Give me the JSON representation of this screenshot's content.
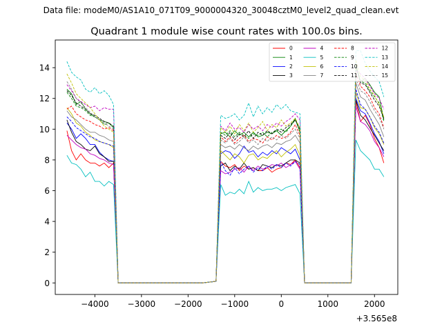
{
  "figure": {
    "filename_label": "Data file: modeM0/AS1A10_071T09_9000004320_30048cztM0_level2_quad_clean.evt"
  },
  "chart_data": {
    "type": "line",
    "title": "Quadrant 1 module wise count rates with 100.0s bins.",
    "xlabel": "",
    "ylabel": "",
    "x_offset_label": "+3.565e8",
    "xlim": [
      -4850,
      2500
    ],
    "ylim": [
      -0.75,
      15.8
    ],
    "xticks": [
      -4000,
      -3000,
      -2000,
      -1000,
      0,
      1000,
      2000
    ],
    "xtick_labels": [
      "−4000",
      "−3000",
      "−2000",
      "−1000",
      "0",
      "1000",
      "2000"
    ],
    "yticks": [
      0,
      2,
      4,
      6,
      8,
      10,
      12,
      14
    ],
    "ytick_labels": [
      "0",
      "2",
      "4",
      "6",
      "8",
      "10",
      "12",
      "14"
    ],
    "grid": false,
    "legend_position": "top-right",
    "legend_columns": 4,
    "segments": [
      {
        "x0": -4600,
        "n": 11
      },
      {
        "x0": -3500,
        "n": 19
      },
      {
        "x0": -1400,
        "n": 1
      },
      {
        "x0": -1300,
        "n": 17
      },
      {
        "x0": 400,
        "n": 1
      },
      {
        "x0": 500,
        "n": 11
      },
      {
        "x0": 1500,
        "n": 1
      },
      {
        "x0": 1600,
        "n": 7
      }
    ],
    "series": [
      {
        "name": "0",
        "color": "#ff0000",
        "dash": false,
        "values": [
          9.9,
          8.6,
          8.0,
          8.4,
          8.0,
          7.8,
          7.8,
          7.6,
          7.8,
          7.5,
          7.8,
          0,
          0,
          0,
          0,
          0,
          0,
          0,
          0,
          0,
          0,
          0,
          0,
          0,
          0,
          0,
          0,
          0,
          0,
          0,
          0.1,
          7.9,
          7.6,
          7.5,
          7.7,
          7.3,
          7.6,
          7.4,
          7.5,
          7.3,
          7.3,
          7.5,
          7.2,
          7.4,
          7.5,
          7.8,
          7.7,
          8.0,
          7.5,
          0,
          0,
          0,
          0,
          0,
          0,
          0,
          0,
          0,
          0,
          0,
          0.1,
          11.8,
          10.5,
          10.9,
          10.3,
          9.4,
          8.8,
          7.8
        ]
      },
      {
        "name": "1",
        "color": "#008000",
        "dash": false,
        "values": [
          12.6,
          12.3,
          11.6,
          11.8,
          11.3,
          11.0,
          10.8,
          10.6,
          10.5,
          10.4,
          10.1,
          0,
          0,
          0,
          0,
          0,
          0,
          0,
          0,
          0,
          0,
          0,
          0,
          0,
          0,
          0,
          0,
          0,
          0,
          0,
          0.1,
          9.7,
          9.8,
          9.5,
          9.9,
          9.6,
          9.8,
          9.5,
          9.8,
          9.5,
          9.6,
          9.8,
          9.7,
          9.9,
          9.6,
          9.9,
          10.2,
          10.7,
          9.8,
          0,
          0,
          0,
          0,
          0,
          0,
          0,
          0,
          0,
          0,
          0,
          0.1,
          14.2,
          13.1,
          13.3,
          12.9,
          12.4,
          12.1,
          10.6
        ]
      },
      {
        "name": "2",
        "color": "#0000ff",
        "dash": false,
        "values": [
          10.4,
          10.0,
          9.4,
          9.7,
          9.4,
          9.0,
          9.0,
          8.5,
          8.2,
          8.0,
          7.9,
          0,
          0,
          0,
          0,
          0,
          0,
          0,
          0,
          0,
          0,
          0,
          0,
          0,
          0,
          0,
          0,
          0,
          0,
          0,
          0.1,
          8.4,
          8.6,
          8.5,
          8.1,
          8.4,
          8.9,
          8.5,
          8.6,
          8.2,
          8.5,
          8.3,
          8.6,
          8.4,
          8.8,
          8.6,
          8.4,
          8.7,
          8.0,
          0,
          0,
          0,
          0,
          0,
          0,
          0,
          0,
          0,
          0,
          0,
          0.1,
          12.0,
          11.2,
          11.0,
          10.4,
          9.7,
          9.2,
          8.4
        ]
      },
      {
        "name": "3",
        "color": "#000000",
        "dash": false,
        "values": [
          10.6,
          9.8,
          9.2,
          9.0,
          8.7,
          8.6,
          8.9,
          8.4,
          8.2,
          7.9,
          7.9,
          0,
          0,
          0,
          0,
          0,
          0,
          0,
          0,
          0,
          0,
          0,
          0,
          0,
          0,
          0,
          0,
          0,
          0,
          0,
          0.1,
          7.6,
          7.8,
          7.3,
          7.6,
          7.4,
          7.8,
          7.4,
          7.5,
          7.3,
          7.7,
          7.6,
          7.5,
          7.7,
          7.6,
          7.8,
          8.0,
          8.0,
          7.8,
          0,
          0,
          0,
          0,
          0,
          0,
          0,
          0,
          0,
          0,
          0,
          0.1,
          11.9,
          10.9,
          10.6,
          10.1,
          9.6,
          9.1,
          8.6
        ]
      },
      {
        "name": "4",
        "color": "#bf00bf",
        "dash": false,
        "values": [
          9.6,
          9.3,
          9.0,
          8.8,
          8.7,
          8.4,
          8.3,
          8.1,
          8.0,
          7.8,
          7.7,
          0,
          0,
          0,
          0,
          0,
          0,
          0,
          0,
          0,
          0,
          0,
          0,
          0,
          0,
          0,
          0,
          0,
          0,
          0,
          0.1,
          7.3,
          7.1,
          7.2,
          7.4,
          7.5,
          7.2,
          7.6,
          7.3,
          7.6,
          7.4,
          7.5,
          7.7,
          7.6,
          7.8,
          7.5,
          7.7,
          7.9,
          7.4,
          0,
          0,
          0,
          0,
          0,
          0,
          0,
          0,
          0,
          0,
          0,
          0.1,
          11.5,
          10.5,
          10.3,
          9.9,
          9.2,
          8.8,
          8.2
        ]
      },
      {
        "name": "5",
        "color": "#00bfbf",
        "dash": false,
        "values": [
          8.3,
          7.8,
          7.7,
          7.4,
          6.9,
          7.2,
          6.6,
          6.6,
          6.3,
          6.6,
          6.4,
          0,
          0,
          0,
          0,
          0,
          0,
          0,
          0,
          0,
          0,
          0,
          0,
          0,
          0,
          0,
          0,
          0,
          0,
          0,
          0.1,
          6.4,
          5.7,
          5.9,
          5.8,
          6.1,
          5.8,
          6.6,
          5.9,
          6.2,
          6.0,
          6.1,
          6.1,
          6.2,
          6.0,
          6.2,
          6.3,
          6.4,
          5.8,
          0,
          0,
          0,
          0,
          0,
          0,
          0,
          0,
          0,
          0,
          0,
          0.1,
          9.3,
          8.6,
          8.3,
          8.0,
          7.4,
          7.4,
          6.9
        ]
      },
      {
        "name": "6",
        "color": "#bfbf00",
        "dash": false,
        "values": [
          11.4,
          11.0,
          10.4,
          10.2,
          9.8,
          9.6,
          9.3,
          9.2,
          9.1,
          9.0,
          8.8,
          0,
          0,
          0,
          0,
          0,
          0,
          0,
          0,
          0,
          0,
          0,
          0,
          0,
          0,
          0,
          0,
          0,
          0,
          0,
          0.1,
          8.6,
          8.3,
          8.0,
          8.4,
          8.2,
          7.8,
          8.3,
          8.4,
          8.0,
          8.2,
          8.1,
          8.4,
          8.6,
          8.2,
          8.5,
          8.7,
          9.0,
          8.3,
          0,
          0,
          0,
          0,
          0,
          0,
          0,
          0,
          0,
          0,
          0,
          0.1,
          12.4,
          11.4,
          11.3,
          10.8,
          10.1,
          9.7,
          9.0
        ]
      },
      {
        "name": "7",
        "color": "#808080",
        "dash": false,
        "values": [
          11.2,
          10.8,
          10.6,
          10.3,
          10.0,
          9.8,
          9.8,
          9.6,
          9.5,
          9.3,
          9.2,
          0,
          0,
          0,
          0,
          0,
          0,
          0,
          0,
          0,
          0,
          0,
          0,
          0,
          0,
          0,
          0,
          0,
          0,
          0,
          0.1,
          9.0,
          8.8,
          8.9,
          8.7,
          9.0,
          8.8,
          8.6,
          8.9,
          8.7,
          8.9,
          9.0,
          8.8,
          9.1,
          9.0,
          9.2,
          9.3,
          9.6,
          9.1,
          0,
          0,
          0,
          0,
          0,
          0,
          0,
          0,
          0,
          0,
          0,
          0.1,
          13.0,
          12.1,
          11.9,
          11.3,
          10.8,
          10.3,
          9.5
        ]
      },
      {
        "name": "8",
        "color": "#ff0000",
        "dash": true,
        "values": [
          11.3,
          11.5,
          11.0,
          10.8,
          10.6,
          10.5,
          10.3,
          10.2,
          10.0,
          10.1,
          9.9,
          0,
          0,
          0,
          0,
          0,
          0,
          0,
          0,
          0,
          0,
          0,
          0,
          0,
          0,
          0,
          0,
          0,
          0,
          0,
          0.1,
          9.5,
          9.2,
          9.5,
          9.1,
          9.4,
          9.6,
          9.2,
          9.4,
          9.3,
          9.1,
          9.5,
          9.3,
          9.6,
          9.4,
          9.5,
          9.8,
          10.3,
          9.6,
          0,
          0,
          0,
          0,
          0,
          0,
          0,
          0,
          0,
          0,
          0,
          0.1,
          13.6,
          12.8,
          12.5,
          12.1,
          11.4,
          11.0,
          10.1
        ]
      },
      {
        "name": "9",
        "color": "#008000",
        "dash": true,
        "values": [
          12.4,
          12.0,
          11.5,
          11.4,
          11.2,
          10.9,
          10.8,
          10.6,
          10.3,
          10.4,
          10.1,
          0,
          0,
          0,
          0,
          0,
          0,
          0,
          0,
          0,
          0,
          0,
          0,
          0,
          0,
          0,
          0,
          0,
          0,
          0,
          0.1,
          9.8,
          9.6,
          9.9,
          9.5,
          9.8,
          9.6,
          9.4,
          9.7,
          9.6,
          9.8,
          9.5,
          9.8,
          9.9,
          10.0,
          9.8,
          10.2,
          10.6,
          9.9,
          0,
          0,
          0,
          0,
          0,
          0,
          0,
          0,
          0,
          0,
          0,
          0.1,
          14.0,
          13.1,
          13.0,
          12.5,
          12.1,
          11.7,
          10.5
        ]
      },
      {
        "name": "10",
        "color": "#0000ff",
        "dash": true,
        "values": [
          10.8,
          10.5,
          10.1,
          9.9,
          9.7,
          9.5,
          9.4,
          9.2,
          9.1,
          9.0,
          8.9,
          0,
          0,
          0,
          0,
          0,
          0,
          0,
          0,
          0,
          0,
          0,
          0,
          0,
          0,
          0,
          0,
          0,
          0,
          0,
          0.1,
          7.9,
          7.3,
          7.0,
          7.5,
          7.1,
          7.4,
          7.6,
          7.2,
          7.5,
          7.3,
          7.6,
          7.4,
          7.7,
          7.5,
          7.8,
          7.6,
          7.9,
          7.7,
          0,
          0,
          0,
          0,
          0,
          0,
          0,
          0,
          0,
          0,
          0,
          0.1,
          12.6,
          11.6,
          11.3,
          10.8,
          10.2,
          9.8,
          9.1
        ]
      },
      {
        "name": "11",
        "color": "#000000",
        "dash": true,
        "values": [
          12.5,
          12.2,
          11.7,
          11.5,
          11.3,
          11.0,
          10.9,
          10.7,
          10.5,
          10.4,
          10.2,
          0,
          0,
          0,
          0,
          0,
          0,
          0,
          0,
          0,
          0,
          0,
          0,
          0,
          0,
          0,
          0,
          0,
          0,
          0,
          0.1,
          9.6,
          9.4,
          9.8,
          9.3,
          9.7,
          9.5,
          9.9,
          9.4,
          9.8,
          9.6,
          9.9,
          9.7,
          10.0,
          9.8,
          10.1,
          10.3,
          10.6,
          10.0,
          0,
          0,
          0,
          0,
          0,
          0,
          0,
          0,
          0,
          0,
          0,
          0.1,
          14.1,
          13.0,
          12.9,
          12.4,
          11.9,
          11.5,
          10.7
        ]
      },
      {
        "name": "12",
        "color": "#bf00bf",
        "dash": true,
        "values": [
          12.9,
          12.5,
          12.0,
          11.8,
          11.6,
          11.4,
          11.5,
          11.2,
          11.4,
          11.3,
          11.3,
          0,
          0,
          0,
          0,
          0,
          0,
          0,
          0,
          0,
          0,
          0,
          0,
          0,
          0,
          0,
          0,
          0,
          0,
          0,
          0.1,
          10.2,
          9.9,
          10.4,
          10.0,
          10.1,
          9.8,
          10.3,
          10.0,
          10.2,
          9.9,
          10.3,
          10.1,
          10.4,
          10.2,
          10.5,
          10.7,
          11.0,
          10.6,
          0,
          0,
          0,
          0,
          0,
          0,
          0,
          0,
          0,
          0,
          0,
          0.1,
          13.8,
          13.6,
          13.3,
          12.8,
          12.3,
          12.0,
          11.3
        ]
      },
      {
        "name": "13",
        "color": "#00bfbf",
        "dash": true,
        "values": [
          14.4,
          13.7,
          13.4,
          13.2,
          12.6,
          12.4,
          12.7,
          12.3,
          12.5,
          12.2,
          11.6,
          0,
          0,
          0,
          0,
          0,
          0,
          0,
          0,
          0,
          0,
          0,
          0,
          0,
          0,
          0,
          0,
          0,
          0,
          0,
          0.1,
          10.9,
          10.7,
          10.8,
          11.0,
          10.6,
          10.9,
          11.7,
          10.8,
          11.5,
          11.0,
          11.4,
          11.1,
          11.6,
          11.3,
          11.6,
          11.2,
          11.1,
          11.0,
          0,
          0,
          0,
          0,
          0,
          0,
          0,
          0,
          0,
          0,
          0,
          0.1,
          15.1,
          15.1,
          14.3,
          13.8,
          13.4,
          13.1,
          12.1
        ]
      },
      {
        "name": "14",
        "color": "#bfbf00",
        "dash": true,
        "values": [
          13.6,
          13.0,
          12.3,
          12.0,
          11.7,
          11.4,
          11.0,
          10.6,
          10.2,
          10.0,
          9.8,
          0,
          0,
          0,
          0,
          0,
          0,
          0,
          0,
          0,
          0,
          0,
          0,
          0,
          0,
          0,
          0,
          0,
          0,
          0,
          0.1,
          10.1,
          9.8,
          10.2,
          9.7,
          10.3,
          9.9,
          10.4,
          9.8,
          10.1,
          10.5,
          9.9,
          10.3,
          10.1,
          10.6,
          10.2,
          10.4,
          10.7,
          10.1,
          0,
          0,
          0,
          0,
          0,
          0,
          0,
          0,
          0,
          0,
          0,
          0.1,
          14.5,
          13.4,
          13.2,
          12.6,
          12.2,
          11.6,
          10.8
        ]
      },
      {
        "name": "15",
        "color": "#808080",
        "dash": true,
        "values": [
          13.1,
          12.6,
          12.0,
          11.7,
          11.4,
          11.1,
          10.8,
          10.6,
          10.4,
          10.2,
          10.0,
          0,
          0,
          0,
          0,
          0,
          0,
          0,
          0,
          0,
          0,
          0,
          0,
          0,
          0,
          0,
          0,
          0,
          0,
          0,
          0.1,
          9.3,
          9.1,
          9.4,
          9.0,
          9.2,
          9.5,
          9.1,
          9.3,
          9.0,
          9.4,
          9.2,
          9.5,
          9.3,
          9.6,
          9.4,
          9.7,
          10.0,
          9.4,
          0,
          0,
          0,
          0,
          0,
          0,
          0,
          0,
          0,
          0,
          0,
          0.1,
          13.3,
          12.5,
          12.3,
          11.8,
          11.2,
          10.8,
          10.0
        ]
      }
    ]
  }
}
